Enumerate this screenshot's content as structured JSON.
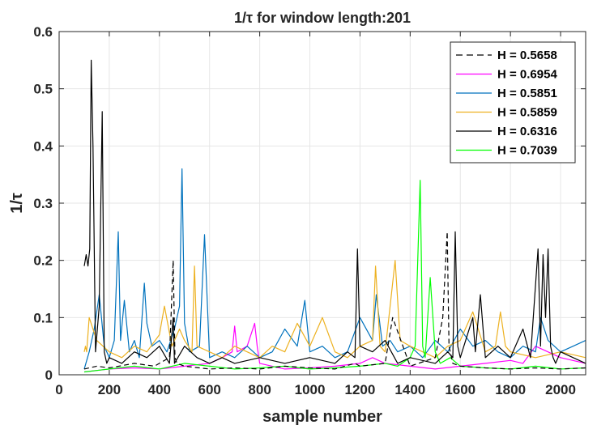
{
  "chart_data": {
    "type": "line",
    "title": "1/τ for window length:201",
    "xlabel": "sample number",
    "ylabel": "1/τ",
    "xlim": [
      0,
      2100
    ],
    "ylim": [
      0,
      0.6
    ],
    "xticks": [
      0,
      200,
      400,
      600,
      800,
      1000,
      1200,
      1400,
      1600,
      1800,
      2000
    ],
    "yticks": [
      0,
      0.1,
      0.2,
      0.3,
      0.4,
      0.5,
      0.6
    ],
    "xtick_labels": [
      "0",
      "200",
      "400",
      "600",
      "800",
      "1000",
      "1200",
      "1400",
      "1600",
      "1800",
      "2000"
    ],
    "ytick_labels": [
      "0",
      "0.1",
      "0.2",
      "0.3",
      "0.4",
      "0.5",
      "0.6"
    ],
    "grid": true,
    "legend_position": "top-right",
    "series": [
      {
        "name": "H = 0.5658",
        "color": "#000000",
        "dash": "dashed",
        "x": [
          100,
          150,
          200,
          300,
          380,
          440,
          455,
          462,
          470,
          500,
          600,
          700,
          800,
          900,
          1000,
          1100,
          1180,
          1200,
          1300,
          1330,
          1400,
          1500,
          1530,
          1548,
          1555,
          1570,
          1600,
          1700,
          1800,
          1900,
          2000,
          2100
        ],
        "y": [
          0.01,
          0.015,
          0.012,
          0.02,
          0.015,
          0.03,
          0.2,
          0.03,
          0.02,
          0.015,
          0.01,
          0.012,
          0.01,
          0.015,
          0.012,
          0.01,
          0.02,
          0.015,
          0.02,
          0.1,
          0.015,
          0.03,
          0.1,
          0.25,
          0.05,
          0.02,
          0.015,
          0.012,
          0.01,
          0.012,
          0.01,
          0.012
        ]
      },
      {
        "name": "H = 0.6954",
        "color": "#ff00ff",
        "dash": "solid",
        "x": [
          100,
          200,
          300,
          400,
          500,
          600,
          650,
          690,
          700,
          710,
          750,
          780,
          790,
          800,
          850,
          900,
          1000,
          1100,
          1200,
          1250,
          1300,
          1400,
          1500,
          1600,
          1700,
          1800,
          1850,
          1900,
          2000,
          2100
        ],
        "y": [
          0.005,
          0.01,
          0.012,
          0.01,
          0.015,
          0.02,
          0.03,
          0.04,
          0.085,
          0.04,
          0.05,
          0.09,
          0.05,
          0.02,
          0.015,
          0.01,
          0.012,
          0.015,
          0.02,
          0.03,
          0.02,
          0.015,
          0.01,
          0.015,
          0.02,
          0.025,
          0.02,
          0.05,
          0.03,
          0.02
        ]
      },
      {
        "name": "H = 0.5851",
        "color": "#0072bd",
        "dash": "solid",
        "x": [
          100,
          120,
          140,
          160,
          180,
          200,
          220,
          236,
          245,
          260,
          280,
          300,
          320,
          340,
          350,
          370,
          400,
          430,
          460,
          480,
          490,
          500,
          520,
          560,
          580,
          600,
          650,
          700,
          750,
          800,
          850,
          900,
          950,
          980,
          1000,
          1050,
          1100,
          1150,
          1200,
          1250,
          1265,
          1290,
          1320,
          1350,
          1400,
          1450,
          1500,
          1550,
          1600,
          1650,
          1700,
          1750,
          1800,
          1850,
          1900,
          1920,
          1950,
          2000,
          2050,
          2100
        ],
        "y": [
          0.01,
          0.04,
          0.08,
          0.14,
          0.05,
          0.03,
          0.06,
          0.25,
          0.06,
          0.13,
          0.04,
          0.06,
          0.03,
          0.16,
          0.09,
          0.05,
          0.06,
          0.04,
          0.08,
          0.12,
          0.36,
          0.09,
          0.04,
          0.05,
          0.245,
          0.03,
          0.04,
          0.03,
          0.05,
          0.03,
          0.04,
          0.08,
          0.05,
          0.13,
          0.04,
          0.05,
          0.03,
          0.04,
          0.1,
          0.06,
          0.14,
          0.05,
          0.06,
          0.04,
          0.05,
          0.03,
          0.06,
          0.04,
          0.08,
          0.05,
          0.06,
          0.04,
          0.03,
          0.05,
          0.04,
          0.1,
          0.06,
          0.04,
          0.05,
          0.06
        ]
      },
      {
        "name": "H = 0.5859",
        "color": "#edb120",
        "dash": "solid",
        "x": [
          100,
          105,
          110,
          120,
          150,
          200,
          250,
          300,
          350,
          400,
          420,
          450,
          480,
          500,
          530,
          540,
          550,
          600,
          650,
          700,
          750,
          800,
          850,
          900,
          950,
          1000,
          1050,
          1100,
          1150,
          1200,
          1250,
          1262,
          1280,
          1300,
          1340,
          1360,
          1400,
          1450,
          1500,
          1550,
          1600,
          1650,
          1700,
          1740,
          1760,
          1780,
          1800,
          1900,
          2000,
          2100
        ],
        "y": [
          0.04,
          0.05,
          0.04,
          0.1,
          0.06,
          0.04,
          0.03,
          0.05,
          0.04,
          0.07,
          0.12,
          0.05,
          0.08,
          0.06,
          0.04,
          0.19,
          0.05,
          0.04,
          0.03,
          0.05,
          0.04,
          0.03,
          0.05,
          0.04,
          0.09,
          0.05,
          0.1,
          0.04,
          0.03,
          0.05,
          0.06,
          0.19,
          0.05,
          0.04,
          0.2,
          0.06,
          0.05,
          0.04,
          0.03,
          0.05,
          0.06,
          0.11,
          0.04,
          0.05,
          0.11,
          0.05,
          0.04,
          0.03,
          0.04,
          0.03
        ]
      },
      {
        "name": "H = 0.6316",
        "color": "#000000",
        "dash": "solid",
        "x": [
          100,
          108,
          115,
          122,
          128,
          135,
          145,
          160,
          172,
          180,
          190,
          200,
          250,
          300,
          350,
          400,
          440,
          455,
          460,
          500,
          550,
          600,
          650,
          700,
          800,
          900,
          1000,
          1100,
          1150,
          1180,
          1190,
          1200,
          1250,
          1300,
          1350,
          1400,
          1500,
          1550,
          1570,
          1580,
          1590,
          1600,
          1650,
          1660,
          1680,
          1700,
          1750,
          1800,
          1850,
          1880,
          1910,
          1920,
          1930,
          1940,
          1950,
          1960,
          1970,
          1980,
          2000,
          2050,
          2100
        ],
        "y": [
          0.19,
          0.21,
          0.19,
          0.22,
          0.55,
          0.4,
          0.04,
          0.12,
          0.46,
          0.04,
          0.02,
          0.03,
          0.02,
          0.04,
          0.03,
          0.05,
          0.02,
          0.1,
          0.02,
          0.05,
          0.03,
          0.02,
          0.03,
          0.02,
          0.03,
          0.02,
          0.03,
          0.02,
          0.04,
          0.03,
          0.22,
          0.05,
          0.04,
          0.06,
          0.02,
          0.03,
          0.02,
          0.04,
          0.03,
          0.25,
          0.05,
          0.03,
          0.1,
          0.04,
          0.14,
          0.03,
          0.05,
          0.03,
          0.08,
          0.03,
          0.22,
          0.05,
          0.21,
          0.1,
          0.22,
          0.05,
          0.03,
          0.02,
          0.04,
          0.03,
          0.02
        ]
      },
      {
        "name": "H = 0.7039",
        "color": "#00ff00",
        "dash": "solid",
        "x": [
          100,
          200,
          300,
          400,
          500,
          600,
          700,
          800,
          900,
          1000,
          1100,
          1200,
          1300,
          1350,
          1400,
          1420,
          1440,
          1450,
          1460,
          1480,
          1500,
          1520,
          1560,
          1600,
          1700,
          1800,
          1900,
          2000,
          2100
        ],
        "y": [
          0.005,
          0.01,
          0.015,
          0.01,
          0.02,
          0.015,
          0.01,
          0.012,
          0.015,
          0.01,
          0.012,
          0.015,
          0.02,
          0.015,
          0.03,
          0.05,
          0.34,
          0.05,
          0.03,
          0.17,
          0.04,
          0.02,
          0.03,
          0.015,
          0.012,
          0.01,
          0.015,
          0.01,
          0.012
        ]
      }
    ]
  }
}
